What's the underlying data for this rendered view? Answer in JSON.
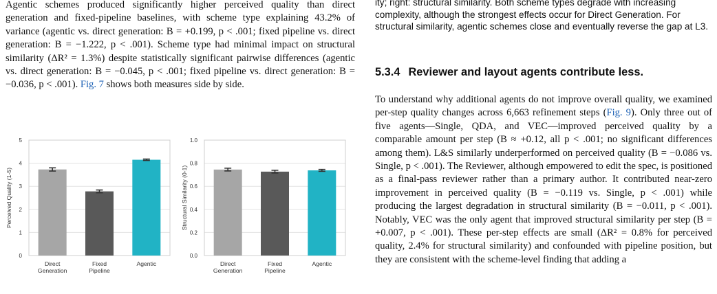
{
  "left_paragraph": [
    {
      "text": "Agentic schemes produced significantly higher perceived quality than direct generation and fixed-pipeline baselines, with scheme type explaining 43.2% of variance (agentic vs. direct generation: B = +0.199, p < .001; fixed pipeline vs. direct generation: B = −1.222, p < .001). Scheme type had minimal impact on structural similarity (ΔR² = 1.3%) despite statistically significant pairwise differences (agentic vs. direct generation: B = −0.045, p < .001; fixed pipeline vs. direct generation: B = −0.036, p < .001). "
    },
    {
      "text": "Fig. 7",
      "link": true
    },
    {
      "text": " shows both measures side by side."
    }
  ],
  "right_caption_tail": "ity; right: structural similarity. Both scheme types degrade with increasing complexity, although the strongest effects occur for Direct Generation. For structural similarity, agentic schemes close and eventually reverse the gap at L3.",
  "section": {
    "number": "5.3.4",
    "title": "Reviewer and layout agents contribute less."
  },
  "right_paragraph": [
    {
      "text": "To understand why additional agents do not improve overall quality, we examined per-step quality changes across 6,663 refinement steps ("
    },
    {
      "text": "Fig. 9",
      "link": true
    },
    {
      "text": "). Only three out of five agents—Single, QDA, and VEC—improved perceived quality by a comparable amount per step (B ≈ +0.12, all p < .001; no significant differences among them). L&S similarly underperformed on perceived quality (B = −0.086 vs. Single, p < .001). The Reviewer, although empowered to edit the spec, is positioned as a final-pass reviewer rather than a primary author. It contributed near-zero improvement in perceived quality (B = −0.119 vs. Single, p < .001) while producing the largest degradation in structural similarity (B = −0.011, p < .001). Notably, VEC was the only agent that improved structural similarity per step (B = +0.007, p < .001). These per-step effects are small (ΔR² = 0.8% for perceived quality, 2.4% for structural similarity) and confounded with pipeline position, but they are consistent with the scheme-level finding that adding a"
    }
  ],
  "chart_data": [
    {
      "type": "bar",
      "categories": [
        "Direct Generation",
        "Fixed Pipeline",
        "Agentic"
      ],
      "category_lines": [
        [
          "Direct",
          "Generation"
        ],
        [
          "Fixed",
          "Pipeline"
        ],
        [
          "Agentic"
        ]
      ],
      "values": [
        3.73,
        2.78,
        4.15
      ],
      "errors": [
        0.07,
        0.06,
        0.03
      ],
      "colors": [
        "#a6a6a6",
        "#595959",
        "#21b3c5"
      ],
      "ylabel": "Perceived Quality (1-5)",
      "ylim": [
        0,
        5
      ],
      "yticks": [
        0,
        1,
        2,
        3,
        4,
        5
      ],
      "yticklabels": [
        "0",
        "1",
        "2",
        "3",
        "4",
        "5"
      ],
      "grid": "horizontal"
    },
    {
      "type": "bar",
      "categories": [
        "Direct Generation",
        "Fixed Pipeline",
        "Agentic"
      ],
      "category_lines": [
        [
          "Direct",
          "Generation"
        ],
        [
          "Fixed",
          "Pipeline"
        ],
        [
          "Agentic"
        ]
      ],
      "values": [
        0.745,
        0.727,
        0.738
      ],
      "errors": [
        0.012,
        0.012,
        0.008
      ],
      "colors": [
        "#a6a6a6",
        "#595959",
        "#21b3c5"
      ],
      "ylabel": "Structural Similarity (0-1)",
      "ylim": [
        0,
        1.0
      ],
      "yticks": [
        0,
        0.2,
        0.4,
        0.6,
        0.8,
        1.0
      ],
      "yticklabels": [
        "0.0",
        "0.2",
        "0.4",
        "0.6",
        "0.8",
        "1.0"
      ],
      "grid": "horizontal"
    }
  ]
}
